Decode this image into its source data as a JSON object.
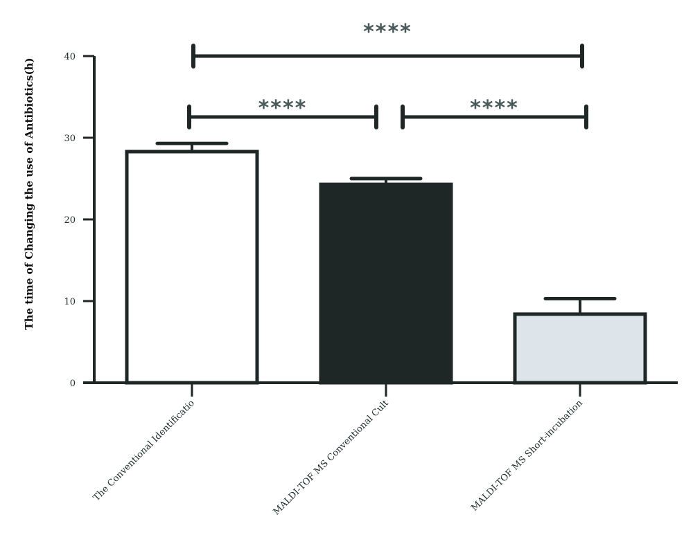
{
  "chart_data": {
    "type": "bar",
    "title": "",
    "xlabel": "",
    "ylabel": "The time of Changing the use of Antibiotics(h)",
    "ylim": [
      0,
      40
    ],
    "yticks": [
      "0",
      "10",
      "20",
      "30",
      "40"
    ],
    "categories": [
      "The Conventional Identificatio",
      "MALDI-TOF MS Conventional Cult",
      "MALDI-TOF MS Short-incubation"
    ],
    "values": [
      28.3,
      24.3,
      8.4
    ],
    "errors": [
      1.0,
      0.7,
      1.9
    ],
    "bar_colors": [
      "#ffffff",
      "#1f2626",
      "#dde4ea"
    ],
    "axis_color": "#1f2626",
    "significance": [
      {
        "from": 0,
        "to": 2,
        "label": "****"
      },
      {
        "from": 0,
        "to": 1,
        "label": "****"
      },
      {
        "from": 1,
        "to": 2,
        "label": "****"
      }
    ]
  }
}
